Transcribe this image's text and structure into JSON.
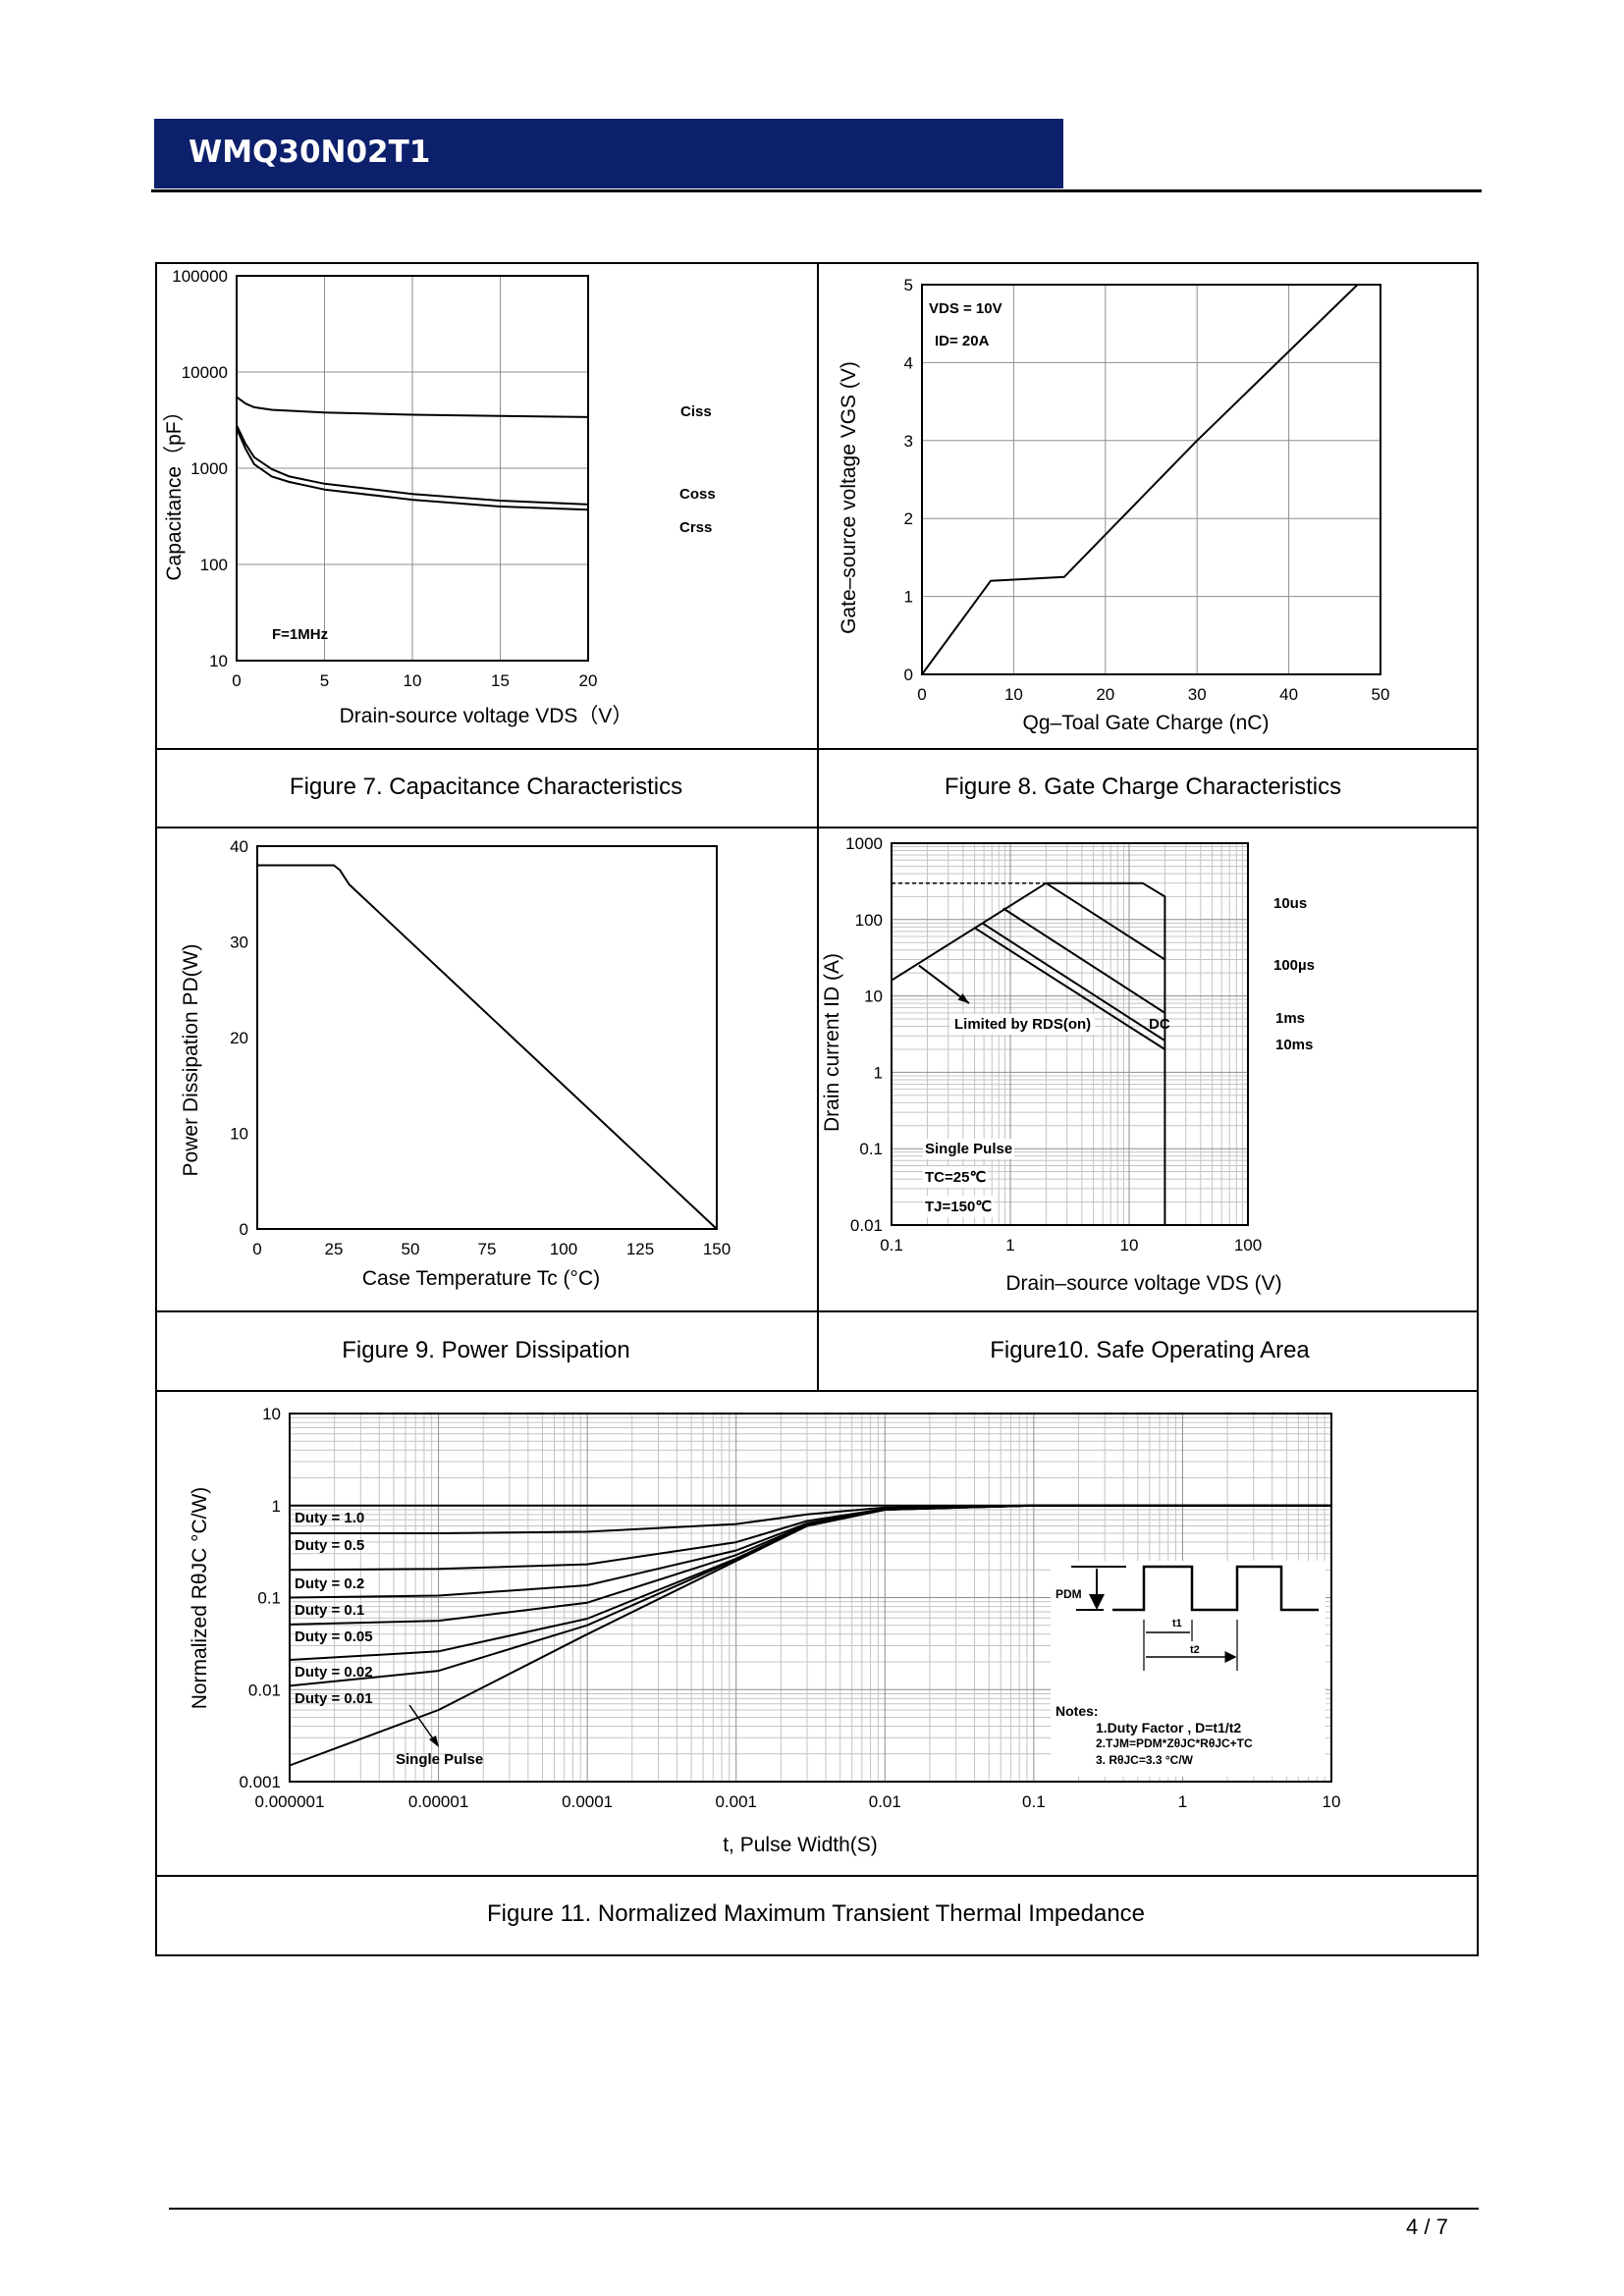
{
  "header": {
    "part_number": "WMQ30N02T1"
  },
  "footer": {
    "page": "4 / 7"
  },
  "colors": {
    "header_bar": "#0c206c",
    "header_text": "#ffffff",
    "lines": "#000000",
    "grid": "#9a9a9a"
  },
  "figures": {
    "fig7": {
      "caption": "Figure 7. Capacitance Characteristics",
      "annotations": {
        "ciss": "Ciss",
        "coss": "Coss",
        "crss": "Crss",
        "freq": "F=1MHz"
      }
    },
    "fig8": {
      "caption": "Figure 8. Gate Charge Characteristics",
      "annotations": {
        "vds": "VDS = 10V",
        "id": "ID= 20A"
      }
    },
    "fig9": {
      "caption": "Figure 9. Power Dissipation"
    },
    "fig10": {
      "caption": "Figure10. Safe Operating Area",
      "annotations": {
        "t10us": "10us",
        "t100us": "100µs",
        "t1ms": "1ms",
        "t10ms": "10ms",
        "dc": "DC",
        "limited": "Limited by RDS(on)",
        "single": "Single Pulse",
        "tc": "TC=25℃",
        "tj": "TJ=150℃"
      }
    },
    "fig11": {
      "caption": "Figure 11. Normalized Maximum Transient Thermal Impedance",
      "annotations": {
        "single": "Single Pulse",
        "pdm": "PDM",
        "t1": "t1",
        "t2": "t2",
        "notes_title": "Notes:",
        "note1": "1.Duty Factor , D=t1/t2",
        "note2": "2.TJM=PDM*ZθJC*RθJC+TC",
        "note3": "3. RθJC=3.3 °C/W"
      }
    }
  },
  "chart_data": [
    {
      "id": "fig7",
      "type": "line",
      "xlabel": "Drain-source voltage VDS（V）",
      "ylabel": "Capacitance（pF）",
      "xscale": "linear",
      "yscale": "log",
      "xlim": [
        0,
        20
      ],
      "ylim": [
        10,
        100000
      ],
      "grid": true,
      "xticks": [
        0,
        5,
        10,
        15,
        20
      ],
      "xtick_labels": [
        "0",
        "5",
        "10",
        "15",
        "20"
      ],
      "yticks": [
        10,
        100,
        1000,
        10000,
        100000
      ],
      "ytick_labels": [
        "10",
        "100",
        "1000",
        "10000",
        "100000"
      ],
      "series": [
        {
          "name": "Ciss",
          "points": [
            [
              0,
              5500
            ],
            [
              0.5,
              4700
            ],
            [
              1,
              4300
            ],
            [
              2,
              4050
            ],
            [
              5,
              3800
            ],
            [
              10,
              3600
            ],
            [
              15,
              3500
            ],
            [
              20,
              3400
            ]
          ]
        },
        {
          "name": "Coss",
          "points": [
            [
              0,
              2800
            ],
            [
              0.5,
              1800
            ],
            [
              1,
              1300
            ],
            [
              2,
              980
            ],
            [
              3,
              820
            ],
            [
              5,
              690
            ],
            [
              10,
              540
            ],
            [
              15,
              460
            ],
            [
              20,
              420
            ]
          ]
        },
        {
          "name": "Crss",
          "points": [
            [
              0,
              2600
            ],
            [
              0.5,
              1600
            ],
            [
              1,
              1100
            ],
            [
              2,
              820
            ],
            [
              3,
              720
            ],
            [
              5,
              600
            ],
            [
              10,
              470
            ],
            [
              15,
              400
            ],
            [
              20,
              370
            ]
          ]
        }
      ]
    },
    {
      "id": "fig8",
      "type": "line",
      "xlabel": "Qg–Toal Gate Charge (nC)",
      "ylabel": "Gate–source voltage VGS (V)",
      "xscale": "linear",
      "yscale": "linear",
      "xlim": [
        0,
        50
      ],
      "ylim": [
        0,
        5
      ],
      "grid": true,
      "xticks": [
        0,
        10,
        20,
        30,
        40,
        50
      ],
      "xtick_labels": [
        "0",
        "10",
        "20",
        "30",
        "40",
        "50"
      ],
      "yticks": [
        0,
        1,
        2,
        3,
        4,
        5
      ],
      "ytick_labels": [
        "0",
        "1",
        "2",
        "3",
        "4",
        "5"
      ],
      "series": [
        {
          "points": [
            [
              0,
              0
            ],
            [
              7.5,
              1.2
            ],
            [
              15.5,
              1.25
            ],
            [
              30,
              3
            ],
            [
              47.5,
              5
            ]
          ]
        }
      ]
    },
    {
      "id": "fig9",
      "type": "line",
      "xlabel": "Case Temperature Tc (°C)",
      "ylabel": "Power Dissipation PD(W)",
      "xscale": "linear",
      "yscale": "linear",
      "xlim": [
        0,
        150
      ],
      "ylim": [
        0,
        40
      ],
      "grid": false,
      "xticks": [
        0,
        25,
        50,
        75,
        100,
        125,
        150
      ],
      "xtick_labels": [
        "0",
        "25",
        "50",
        "75",
        "100",
        "125",
        "150"
      ],
      "yticks": [
        0,
        10,
        20,
        30,
        40
      ],
      "ytick_labels": [
        "0",
        "10",
        "20",
        "30",
        "40"
      ],
      "series": [
        {
          "points": [
            [
              0,
              38
            ],
            [
              25,
              38
            ],
            [
              27,
              37.5
            ],
            [
              30,
              36
            ],
            [
              150,
              0
            ]
          ]
        }
      ]
    },
    {
      "id": "fig10",
      "type": "line",
      "xlabel": "Drain–source voltage VDS (V)",
      "ylabel": "Drain current ID (A)",
      "xscale": "log",
      "yscale": "log",
      "xlim": [
        0.1,
        100
      ],
      "ylim": [
        0.01,
        1000
      ],
      "grid": true,
      "xticks": [
        0.1,
        1,
        10,
        100
      ],
      "xtick_labels": [
        "0.1",
        "1",
        "10",
        "100"
      ],
      "yticks": [
        0.01,
        0.1,
        1,
        10,
        100,
        1000
      ],
      "ytick_labels": [
        "0.01",
        "0.1",
        "1",
        "10",
        "100",
        "1000"
      ],
      "series": [
        {
          "name": "Limited by RDS(on)",
          "points": [
            [
              0.1,
              16
            ],
            [
              2,
              300
            ]
          ]
        },
        {
          "name": "ID limit",
          "dashed": true,
          "points": [
            [
              0.1,
              300
            ],
            [
              2,
              300
            ]
          ]
        },
        {
          "name": "10us",
          "points": [
            [
              2,
              300
            ],
            [
              13,
              300
            ],
            [
              20,
              200
            ],
            [
              20,
              0.01
            ]
          ]
        },
        {
          "name": "100µs",
          "points": [
            [
              2,
              300
            ],
            [
              20,
              30
            ]
          ]
        },
        {
          "name": "1ms",
          "points": [
            [
              0.87,
              140
            ],
            [
              20,
              6
            ]
          ]
        },
        {
          "name": "10ms",
          "points": [
            [
              0.58,
              90
            ],
            [
              20,
              2.6
            ]
          ]
        },
        {
          "name": "DC",
          "points": [
            [
              0.5,
              78
            ],
            [
              20,
              2
            ]
          ]
        },
        {
          "name": "arrow",
          "arrow": true,
          "points": [
            [
              0.17,
              25
            ],
            [
              0.45,
              8
            ]
          ]
        }
      ]
    },
    {
      "id": "fig11",
      "type": "line",
      "xlabel": "t, Pulse Width(S)",
      "ylabel": "Normalized RθJC °C/W)",
      "xscale": "log",
      "yscale": "log",
      "xlim": [
        1e-06,
        10
      ],
      "ylim": [
        0.001,
        10
      ],
      "grid": true,
      "xticks": [
        1e-06,
        1e-05,
        0.0001,
        0.001,
        0.01,
        0.1,
        1,
        10
      ],
      "xtick_labels": [
        "0.000001",
        "0.00001",
        "0.0001",
        "0.001",
        "0.01",
        "0.1",
        "1",
        "10"
      ],
      "yticks": [
        0.001,
        0.01,
        0.1,
        1,
        10
      ],
      "ytick_labels": [
        "0.001",
        "0.01",
        "0.1",
        "1",
        "10"
      ],
      "series": [
        {
          "name": "Duty = 1.0",
          "points": [
            [
              1e-06,
              1
            ],
            [
              10,
              1
            ]
          ]
        },
        {
          "name": "Duty = 0.5",
          "points": [
            [
              1e-06,
              0.5
            ],
            [
              1e-05,
              0.5
            ],
            [
              0.0001,
              0.52
            ],
            [
              0.001,
              0.63
            ],
            [
              0.003,
              0.8
            ],
            [
              0.01,
              0.95
            ],
            [
              0.1,
              1
            ],
            [
              10,
              1
            ]
          ]
        },
        {
          "name": "Duty = 0.2",
          "points": [
            [
              1e-06,
              0.2
            ],
            [
              1e-05,
              0.205
            ],
            [
              0.0001,
              0.23
            ],
            [
              0.001,
              0.4
            ],
            [
              0.003,
              0.68
            ],
            [
              0.01,
              0.92
            ],
            [
              0.1,
              1
            ],
            [
              10,
              1
            ]
          ]
        },
        {
          "name": "Duty = 0.1",
          "points": [
            [
              1e-06,
              0.1
            ],
            [
              1e-05,
              0.105
            ],
            [
              0.0001,
              0.136
            ],
            [
              0.001,
              0.325
            ],
            [
              0.003,
              0.64
            ],
            [
              0.01,
              0.91
            ],
            [
              0.1,
              1
            ],
            [
              10,
              1
            ]
          ]
        },
        {
          "name": "Duty = 0.05",
          "points": [
            [
              1e-06,
              0.051
            ],
            [
              1e-05,
              0.056
            ],
            [
              0.0001,
              0.088
            ],
            [
              0.001,
              0.29
            ],
            [
              0.003,
              0.62
            ],
            [
              0.01,
              0.905
            ],
            [
              0.1,
              1
            ],
            [
              10,
              1
            ]
          ]
        },
        {
          "name": "Duty = 0.02",
          "points": [
            [
              1e-06,
              0.021
            ],
            [
              1e-05,
              0.026
            ],
            [
              0.0001,
              0.059
            ],
            [
              0.001,
              0.265
            ],
            [
              0.003,
              0.61
            ],
            [
              0.01,
              0.9
            ],
            [
              0.1,
              1
            ],
            [
              10,
              1
            ]
          ]
        },
        {
          "name": "Duty = 0.01",
          "points": [
            [
              1e-06,
              0.011
            ],
            [
              1e-05,
              0.016
            ],
            [
              0.0001,
              0.05
            ],
            [
              0.001,
              0.26
            ],
            [
              0.003,
              0.6
            ],
            [
              0.01,
              0.9
            ],
            [
              0.1,
              1
            ],
            [
              10,
              1
            ]
          ]
        },
        {
          "name": "Single Pulse",
          "points": [
            [
              1e-06,
              0.0015
            ],
            [
              1e-05,
              0.006
            ],
            [
              0.0001,
              0.04
            ],
            [
              0.001,
              0.25
            ],
            [
              0.003,
              0.6
            ],
            [
              0.01,
              0.9
            ],
            [
              0.03,
              0.98
            ],
            [
              0.1,
              1
            ],
            [
              10,
              1
            ]
          ]
        }
      ]
    }
  ]
}
